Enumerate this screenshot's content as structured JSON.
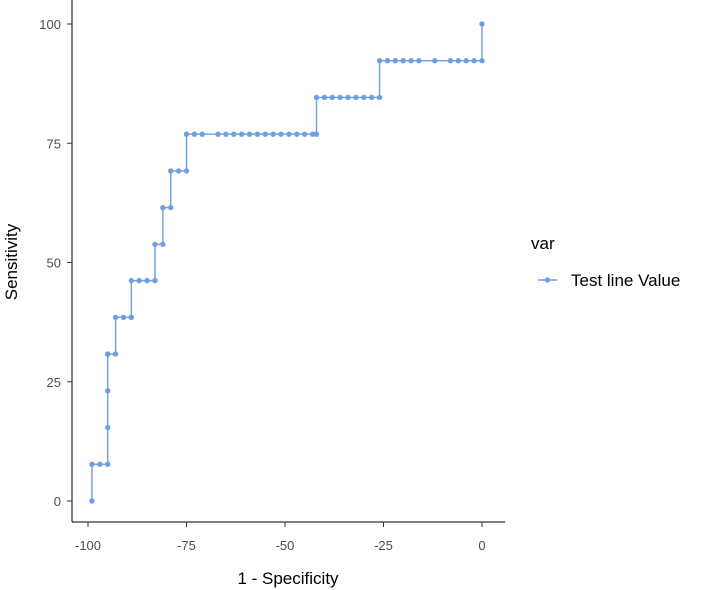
{
  "chart_data": {
    "type": "line",
    "title": "",
    "xlabel": "1 - Specificity",
    "ylabel": "Sensitivity",
    "xlim": [
      -104,
      5
    ],
    "ylim": [
      -5,
      105
    ],
    "xticks": [
      -100,
      -75,
      -50,
      -25,
      0
    ],
    "xtick_labels": [
      "-100",
      "-75",
      "-50",
      "-25",
      "0"
    ],
    "yticks": [
      0,
      25,
      50,
      75,
      100
    ],
    "ytick_labels": [
      "0",
      "25",
      "50",
      "75",
      "100"
    ],
    "grid": false,
    "step": true,
    "legend": {
      "title": "var",
      "position": "right"
    },
    "series": [
      {
        "name": "Test line Value",
        "color": "#6f9ee6",
        "x": [
          -99,
          -99,
          -97,
          -95,
          -95,
          -95,
          -95,
          -95,
          -93,
          -93,
          -91,
          -89,
          -89,
          -87,
          -85,
          -83,
          -83,
          -81,
          -81,
          -79,
          -79,
          -77,
          -75,
          -75,
          -73,
          -71,
          -67,
          -65,
          -63,
          -61,
          -59,
          -57,
          -55,
          -53,
          -51,
          -49,
          -47,
          -45,
          -43,
          -42,
          -42,
          -40,
          -38,
          -36,
          -34,
          -32,
          -30,
          -28,
          -26,
          -26,
          -24,
          -22,
          -20,
          -18,
          -16,
          -12,
          -8,
          -6,
          -4,
          -2,
          0,
          0
        ],
        "y": [
          0,
          7.7,
          7.7,
          7.7,
          15.4,
          23.1,
          30.8,
          30.8,
          30.8,
          38.5,
          38.5,
          38.5,
          46.2,
          46.2,
          46.2,
          46.2,
          53.8,
          53.8,
          61.5,
          61.5,
          69.2,
          69.2,
          69.2,
          76.9,
          76.9,
          76.9,
          76.9,
          76.9,
          76.9,
          76.9,
          76.9,
          76.9,
          76.9,
          76.9,
          76.9,
          76.9,
          76.9,
          76.9,
          76.9,
          76.9,
          84.6,
          84.6,
          84.6,
          84.6,
          84.6,
          84.6,
          84.6,
          84.6,
          84.6,
          92.3,
          92.3,
          92.3,
          92.3,
          92.3,
          92.3,
          92.3,
          92.3,
          92.3,
          92.3,
          92.3,
          92.3,
          100
        ]
      }
    ]
  }
}
